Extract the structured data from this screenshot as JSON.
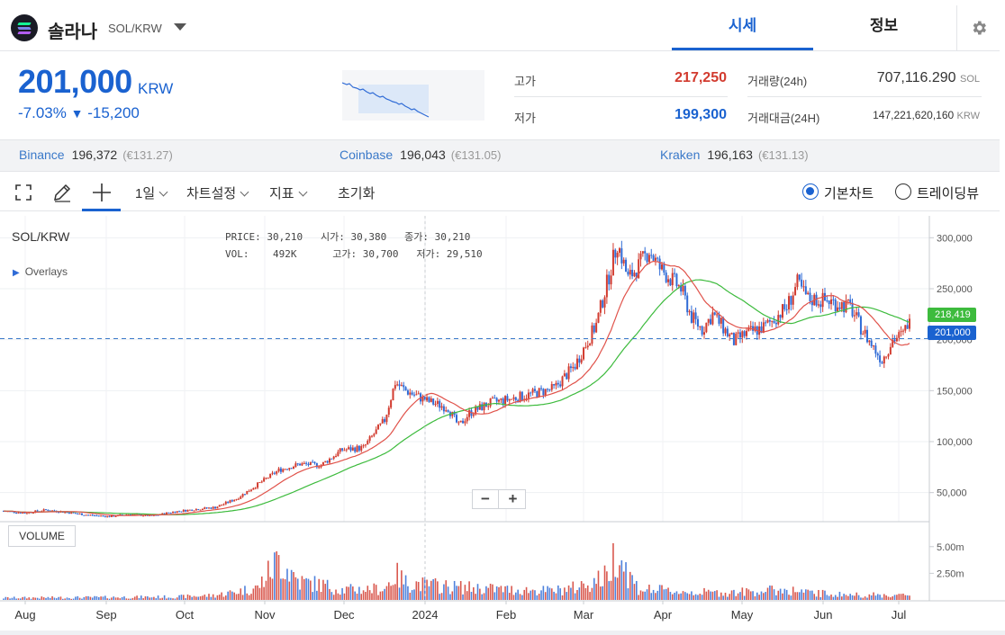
{
  "header": {
    "coin_name": "솔라나",
    "pair": "SOL/KRW",
    "tabs": [
      "시세",
      "정보"
    ]
  },
  "price": {
    "current": "201,000",
    "unit": "KRW",
    "change_pct": "-7.03%",
    "change_arrow": "▼",
    "change_abs": "-15,200"
  },
  "stats": {
    "high_label": "고가",
    "high_value": "217,250",
    "low_label": "저가",
    "low_value": "199,300",
    "volume_label": "거래량(24h)",
    "volume_value": "707,116.290",
    "volume_unit": "SOL",
    "turnover_label": "거래대금(24H)",
    "turnover_value": "147,221,620,160",
    "turnover_unit": "KRW"
  },
  "exchanges": [
    {
      "name": "Binance",
      "price": "196,372",
      "eur": "(€131.27)"
    },
    {
      "name": "Coinbase",
      "price": "196,043",
      "eur": "(€131.05)"
    },
    {
      "name": "Kraken",
      "price": "196,163",
      "eur": "(€131.13)"
    }
  ],
  "toolbar": {
    "interval": "1일",
    "chart_settings": "차트설정",
    "indicators": "지표",
    "reset": "초기화",
    "basic_chart": "기본차트",
    "trading_view": "트레이딩뷰"
  },
  "chart": {
    "pair_label": "SOL/KRW",
    "overlays_label": "Overlays",
    "price_label": "PRICE:",
    "price_value": "30,210",
    "open_label": "시가:",
    "open_value": "30,380",
    "close_label": "종가:",
    "close_value": "30,210",
    "vol_label": "VOL:",
    "vol_value": "492K",
    "high_label": "고가:",
    "high_value": "30,700",
    "low_label": "저가:",
    "low_value": "29,510",
    "volume_button": "VOLUME",
    "zoom_out": "−",
    "zoom_in": "+",
    "tag_ma": "218,419",
    "tag_price": "201,000",
    "colors": {
      "up": "#d23b2f",
      "down": "#2f6bd6",
      "ma_fast": "#e0524a",
      "ma_slow": "#3dbb3d",
      "accent": "#1a62d0"
    }
  },
  "chart_data": {
    "type": "candlestick",
    "y_ticks": [
      "300,000",
      "250,000",
      "200,000",
      "150,000",
      "100,000",
      "50,000"
    ],
    "y_tick_values": [
      300000,
      250000,
      200000,
      150000,
      100000,
      50000
    ],
    "ylim": [
      25000,
      310000
    ],
    "x_ticks": [
      "Aug",
      "Sep",
      "Oct",
      "Nov",
      "Dec",
      "2024",
      "Feb",
      "Mar",
      "Apr",
      "May",
      "Jun",
      "Jul"
    ],
    "volume_ticks": [
      "5.00m",
      "2.50m"
    ],
    "volume_tick_values": [
      5000000,
      2500000
    ],
    "price_path": [
      [
        0,
        32000
      ],
      [
        10,
        30000
      ],
      [
        20,
        33000
      ],
      [
        30,
        30500
      ],
      [
        40,
        28000
      ],
      [
        50,
        26500
      ],
      [
        60,
        29000
      ],
      [
        70,
        27000
      ],
      [
        80,
        31000
      ],
      [
        90,
        33500
      ],
      [
        100,
        35500
      ],
      [
        110,
        44000
      ],
      [
        120,
        58000
      ],
      [
        130,
        72000
      ],
      [
        140,
        78000
      ],
      [
        150,
        77000
      ],
      [
        160,
        92000
      ],
      [
        170,
        94000
      ],
      [
        180,
        121000
      ],
      [
        185,
        158000
      ],
      [
        190,
        150000
      ],
      [
        200,
        140000
      ],
      [
        210,
        133000
      ],
      [
        215,
        115000
      ],
      [
        220,
        128000
      ],
      [
        230,
        138000
      ],
      [
        240,
        142000
      ],
      [
        250,
        147000
      ],
      [
        260,
        152000
      ],
      [
        270,
        175000
      ],
      [
        280,
        215000
      ],
      [
        285,
        255000
      ],
      [
        290,
        295000
      ],
      [
        295,
        260000
      ],
      [
        300,
        272000
      ],
      [
        305,
        288000
      ],
      [
        310,
        270000
      ],
      [
        320,
        250000
      ],
      [
        325,
        222000
      ],
      [
        330,
        210000
      ],
      [
        335,
        225000
      ],
      [
        345,
        198000
      ],
      [
        350,
        205000
      ],
      [
        360,
        213000
      ],
      [
        370,
        232000
      ],
      [
        375,
        255000
      ],
      [
        380,
        240000
      ],
      [
        390,
        238000
      ],
      [
        400,
        232000
      ],
      [
        405,
        212000
      ],
      [
        410,
        195000
      ],
      [
        415,
        180000
      ],
      [
        420,
        200000
      ],
      [
        425,
        205000
      ],
      [
        427,
        216000
      ]
    ],
    "volume_path": [
      [
        0,
        200000
      ],
      [
        40,
        250000
      ],
      [
        80,
        300000
      ],
      [
        100,
        450000
      ],
      [
        120,
        1200000
      ],
      [
        130,
        4000000
      ],
      [
        140,
        1800000
      ],
      [
        150,
        1500000
      ],
      [
        160,
        1000000
      ],
      [
        180,
        1100000
      ],
      [
        185,
        2500000
      ],
      [
        190,
        1700000
      ],
      [
        200,
        1500000
      ],
      [
        210,
        1300000
      ],
      [
        240,
        1000000
      ],
      [
        260,
        900000
      ],
      [
        270,
        1200000
      ],
      [
        285,
        2300000
      ],
      [
        290,
        5200000
      ],
      [
        295,
        2600000
      ],
      [
        300,
        1100000
      ],
      [
        320,
        800000
      ],
      [
        340,
        700000
      ],
      [
        370,
        1000000
      ],
      [
        380,
        700000
      ],
      [
        400,
        500000
      ],
      [
        427,
        450000
      ]
    ]
  }
}
